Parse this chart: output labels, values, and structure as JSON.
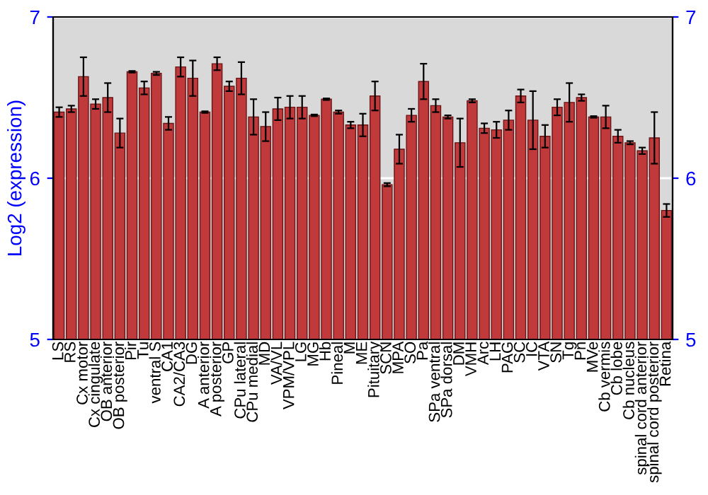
{
  "chart_data": {
    "type": "bar",
    "ylabel": "Log2 (expression)",
    "categories": [
      "LS",
      "RS",
      "Cx motor",
      "Cx cingulate",
      "OB anterior",
      "OB posterior",
      "Pir",
      "Tu",
      "ventral S",
      "CA1",
      "CA2/CA3",
      "DG",
      "A anterior",
      "A posterior",
      "GP",
      "CPu lateral",
      "CPu medial",
      "MD",
      "VA/VL",
      "VPM/VPL",
      "LG",
      "MG",
      "Hb",
      "Pineal",
      "M",
      "ME",
      "Pituitary",
      "SCN",
      "MPA",
      "SO",
      "Pa",
      "SPa ventral",
      "SPa dorsal",
      "DM",
      "VMH",
      "Arc",
      "LH",
      "PAG",
      "SC",
      "IC",
      "VTA",
      "SN",
      "Tg",
      "Pn",
      "MVe",
      "Cb vermis",
      "Cb lobe",
      "Cb nucleus",
      "spinal cord anterior",
      "spinal cord posterior",
      "Retina"
    ],
    "values": [
      6.41,
      6.43,
      6.63,
      6.46,
      6.5,
      6.28,
      6.66,
      6.56,
      6.65,
      6.34,
      6.69,
      6.62,
      6.41,
      6.71,
      6.57,
      6.62,
      6.38,
      6.32,
      6.43,
      6.44,
      6.44,
      6.39,
      6.49,
      6.41,
      6.33,
      6.33,
      6.51,
      5.96,
      6.18,
      6.39,
      6.6,
      6.45,
      6.38,
      6.22,
      6.48,
      6.31,
      6.3,
      6.36,
      6.51,
      6.36,
      6.26,
      6.44,
      6.47,
      6.5,
      6.38,
      6.38,
      6.26,
      6.22,
      6.17,
      6.25,
      5.8
    ],
    "errors": [
      0.03,
      0.02,
      0.12,
      0.03,
      0.09,
      0.09,
      0.005,
      0.04,
      0.01,
      0.04,
      0.06,
      0.11,
      0.005,
      0.04,
      0.03,
      0.1,
      0.11,
      0.09,
      0.07,
      0.07,
      0.07,
      0.005,
      0.005,
      0.01,
      0.02,
      0.07,
      0.09,
      0.01,
      0.09,
      0.04,
      0.11,
      0.04,
      0.01,
      0.15,
      0.01,
      0.03,
      0.05,
      0.06,
      0.04,
      0.18,
      0.07,
      0.05,
      0.12,
      0.02,
      0.005,
      0.07,
      0.04,
      0.01,
      0.02,
      0.16,
      0.04
    ],
    "color": "#c0393b",
    "ylim": [
      5,
      7
    ],
    "yticks": [
      5,
      6,
      7
    ],
    "y2lim": [
      5,
      7
    ],
    "y2ticks": [
      5,
      6,
      7
    ],
    "grid": "y",
    "legend": false
  }
}
